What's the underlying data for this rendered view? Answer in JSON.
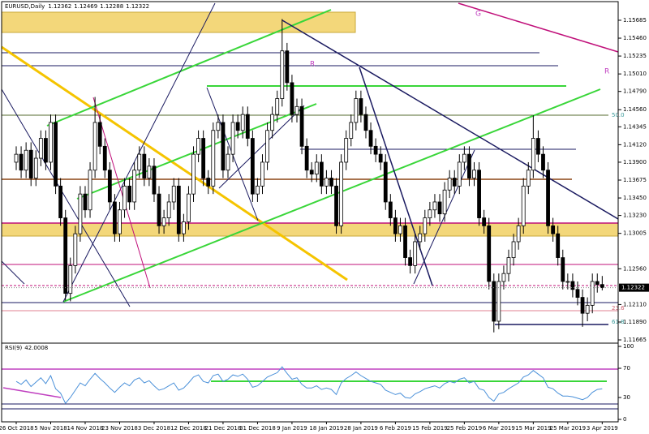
{
  "chart_data": {
    "type": "candlestick",
    "symbol": "EURUSD,Daily",
    "categories": [
      "26 Oct 2018",
      null,
      null,
      null,
      null,
      null,
      null,
      "5 Nov 2018",
      null,
      null,
      null,
      null,
      null,
      null,
      "14 Nov 2018",
      null,
      null,
      null,
      null,
      null,
      null,
      "23 Nov 2018",
      null,
      null,
      null,
      null,
      null,
      null,
      "3 Dec 2018",
      null,
      null,
      null,
      null,
      null,
      null,
      "12 Dec 2018",
      null,
      null,
      null,
      null,
      null,
      null,
      "21 Dec 2018",
      null,
      null,
      null,
      null,
      null,
      null,
      "31 Dec 2018",
      null,
      null,
      null,
      null,
      null,
      null,
      "9 Jan 2019",
      null,
      null,
      null,
      null,
      null,
      null,
      "18 Jan 2019",
      null,
      null,
      null,
      null,
      null,
      null,
      "28 Jan 2019",
      null,
      null,
      null,
      null,
      null,
      null,
      "6 Feb 2019",
      null,
      null,
      null,
      null,
      null,
      null,
      "15 Feb 2019",
      null,
      null,
      null,
      null,
      null,
      null,
      "25 Feb 2019",
      null,
      null,
      null,
      null,
      null,
      null,
      "6 Mar 2019",
      null,
      null,
      null,
      null,
      null,
      null,
      "15 Mar 2019",
      null,
      null,
      null,
      null,
      null,
      null,
      "25 Mar 2019",
      null,
      null,
      null,
      null,
      null,
      null,
      "3 Apr 2019"
    ],
    "open": [
      1.139,
      1.14,
      1.138,
      1.1405,
      1.137,
      1.1395,
      1.142,
      1.139,
      1.144,
      1.136,
      1.132,
      1.1225,
      1.126,
      1.13,
      1.135,
      1.133,
      1.138,
      1.144,
      1.141,
      1.138,
      1.134,
      1.13,
      1.133,
      1.136,
      1.134,
      1.138,
      1.14,
      1.137,
      1.1385,
      1.135,
      1.131,
      1.132,
      1.134,
      1.136,
      1.13,
      1.1315,
      1.135,
      1.14,
      1.142,
      1.137,
      1.136,
      1.143,
      1.144,
      1.138,
      1.14,
      1.144,
      1.143,
      1.145,
      1.142,
      1.135,
      1.136,
      1.139,
      1.143,
      1.145,
      1.147,
      1.153,
      1.149,
      1.145,
      1.146,
      1.141,
      1.138,
      1.1375,
      1.139,
      1.136,
      1.137,
      1.136,
      1.131,
      1.139,
      1.142,
      1.144,
      1.147,
      1.145,
      1.143,
      1.141,
      1.14,
      1.139,
      1.134,
      1.132,
      1.13,
      1.131,
      1.127,
      1.126,
      1.129,
      1.13,
      1.132,
      1.133,
      1.134,
      1.1325,
      1.1355,
      1.137,
      1.136,
      1.139,
      1.14,
      1.137,
      1.138,
      1.132,
      1.131,
      1.124,
      1.119,
      1.124,
      1.125,
      1.127,
      1.129,
      1.131,
      1.136,
      1.138,
      1.142,
      1.14,
      1.138,
      1.131,
      1.13,
      1.127,
      1.124,
      1.124,
      1.123,
      1.122,
      1.12,
      1.121,
      1.124,
      1.12362
    ],
    "high": [
      1.141,
      1.141,
      1.1415,
      1.1415,
      1.1405,
      1.143,
      1.143,
      1.145,
      1.145,
      1.137,
      1.133,
      1.127,
      1.131,
      1.136,
      1.136,
      1.139,
      1.1472,
      1.145,
      1.142,
      1.139,
      1.135,
      1.134,
      1.137,
      1.137,
      1.139,
      1.141,
      1.141,
      1.1395,
      1.1395,
      1.136,
      1.133,
      1.135,
      1.137,
      1.137,
      1.1325,
      1.136,
      1.141,
      1.143,
      1.143,
      1.138,
      1.144,
      1.145,
      1.145,
      1.141,
      1.145,
      1.145,
      1.146,
      1.146,
      1.143,
      1.137,
      1.14,
      1.144,
      1.146,
      1.148,
      1.157,
      1.154,
      1.15,
      1.147,
      1.147,
      1.142,
      1.139,
      1.14,
      1.14,
      1.138,
      1.138,
      1.137,
      1.14,
      1.143,
      1.145,
      1.148,
      1.148,
      1.146,
      1.144,
      1.142,
      1.141,
      1.14,
      1.135,
      1.133,
      1.132,
      1.132,
      1.128,
      1.13,
      1.131,
      1.133,
      1.134,
      1.135,
      1.135,
      1.1365,
      1.138,
      1.138,
      1.14,
      1.141,
      1.141,
      1.139,
      1.139,
      1.133,
      1.132,
      1.125,
      1.125,
      1.126,
      1.128,
      1.13,
      1.132,
      1.137,
      1.139,
      1.1449,
      1.143,
      1.141,
      1.139,
      1.132,
      1.131,
      1.128,
      1.125,
      1.125,
      1.124,
      1.123,
      1.122,
      1.125,
      1.125,
      1.12469
    ],
    "low": [
      1.138,
      1.137,
      1.137,
      1.136,
      1.136,
      1.1385,
      1.138,
      1.138,
      1.135,
      1.131,
      1.1216,
      1.1215,
      1.125,
      1.129,
      1.132,
      1.132,
      1.137,
      1.14,
      1.137,
      1.133,
      1.129,
      1.129,
      1.132,
      1.133,
      1.133,
      1.137,
      1.136,
      1.136,
      1.134,
      1.13,
      1.13,
      1.131,
      1.133,
      1.129,
      1.129,
      1.1305,
      1.134,
      1.139,
      1.136,
      1.135,
      1.135,
      1.142,
      1.137,
      1.137,
      1.139,
      1.142,
      1.142,
      1.141,
      1.134,
      1.134,
      1.135,
      1.138,
      1.142,
      1.144,
      1.146,
      1.148,
      1.144,
      1.144,
      1.14,
      1.137,
      1.1365,
      1.1365,
      1.135,
      1.135,
      1.135,
      1.13,
      1.13,
      1.138,
      1.141,
      1.143,
      1.144,
      1.142,
      1.14,
      1.139,
      1.138,
      1.133,
      1.131,
      1.129,
      1.129,
      1.126,
      1.125,
      1.125,
      1.128,
      1.129,
      1.131,
      1.132,
      1.1315,
      1.1315,
      1.1345,
      1.135,
      1.135,
      1.138,
      1.136,
      1.136,
      1.131,
      1.13,
      1.123,
      1.1176,
      1.118,
      1.123,
      1.124,
      1.126,
      1.128,
      1.13,
      1.135,
      1.137,
      1.139,
      1.137,
      1.13,
      1.129,
      1.126,
      1.123,
      1.123,
      1.122,
      1.121,
      1.1183,
      1.119,
      1.12,
      1.1226,
      1.12288
    ],
    "close": [
      1.14,
      1.138,
      1.1405,
      1.137,
      1.1395,
      1.142,
      1.139,
      1.144,
      1.136,
      1.132,
      1.1225,
      1.126,
      1.13,
      1.135,
      1.133,
      1.138,
      1.144,
      1.141,
      1.138,
      1.134,
      1.13,
      1.133,
      1.136,
      1.134,
      1.138,
      1.14,
      1.137,
      1.1385,
      1.135,
      1.131,
      1.132,
      1.134,
      1.136,
      1.13,
      1.1315,
      1.135,
      1.14,
      1.142,
      1.137,
      1.136,
      1.143,
      1.144,
      1.138,
      1.14,
      1.144,
      1.143,
      1.145,
      1.142,
      1.135,
      1.136,
      1.139,
      1.143,
      1.145,
      1.147,
      1.153,
      1.149,
      1.145,
      1.146,
      1.141,
      1.138,
      1.1375,
      1.139,
      1.136,
      1.137,
      1.136,
      1.131,
      1.139,
      1.142,
      1.144,
      1.147,
      1.145,
      1.143,
      1.141,
      1.14,
      1.139,
      1.134,
      1.132,
      1.13,
      1.131,
      1.127,
      1.126,
      1.129,
      1.13,
      1.132,
      1.133,
      1.134,
      1.1325,
      1.1355,
      1.137,
      1.136,
      1.139,
      1.14,
      1.137,
      1.138,
      1.132,
      1.131,
      1.124,
      1.119,
      1.124,
      1.125,
      1.127,
      1.129,
      1.131,
      1.136,
      1.138,
      1.142,
      1.14,
      1.138,
      1.131,
      1.13,
      1.127,
      1.124,
      1.124,
      1.123,
      1.122,
      1.12,
      1.121,
      1.124,
      1.12362,
      1.12322
    ],
    "ylim": [
      1.11655,
      1.15899
    ],
    "yticks": [
      1.15685,
      {
        "value": 1.1546,
        "label": "1.15460"
      },
      1.15235,
      {
        "value": 1.1501,
        "label": "1.15010"
      },
      {
        "value": 1.1479,
        "label": "1.14790"
      },
      {
        "value": 1.1456,
        "label": "1.14560"
      },
      1.14345,
      {
        "value": 1.1412,
        "label": "1.14120"
      },
      {
        "value": 1.139,
        "label": "1.13900"
      },
      1.13675,
      {
        "value": 1.1345,
        "label": "1.13450"
      },
      {
        "value": 1.1323,
        "label": "1.13230"
      },
      1.13005,
      {
        "value": 1.1256,
        "label": "1.12560"
      },
      {
        "value": 1.1211,
        "label": "1.12110"
      },
      {
        "value": 1.1189,
        "label": "1.11890"
      },
      1.11665
    ],
    "up_color": "#ffffff",
    "down_color": "#000000",
    "annotations": [
      "50.0",
      "23.6",
      "61.8",
      "G",
      "R",
      "R"
    ],
    "indicator": {
      "name": "RSI(9)",
      "color": "#4a90d9",
      "ylim": [
        0,
        100
      ],
      "yticks": [
        100,
        70,
        30,
        0
      ],
      "values": [
        52,
        48,
        54,
        45,
        51,
        57,
        49,
        60,
        42,
        36,
        22,
        30,
        40,
        50,
        46,
        55,
        63,
        56,
        50,
        43,
        37,
        44,
        50,
        46,
        54,
        57,
        50,
        53,
        46,
        40,
        42,
        46,
        50,
        40,
        43,
        50,
        58,
        61,
        52,
        50,
        60,
        62,
        52,
        55,
        61,
        59,
        62,
        55,
        44,
        46,
        52,
        58,
        61,
        64,
        72,
        63,
        55,
        57,
        48,
        43,
        43,
        46,
        41,
        43,
        41,
        34,
        50,
        56,
        60,
        65,
        60,
        56,
        52,
        50,
        48,
        40,
        37,
        34,
        36,
        30,
        29,
        35,
        38,
        42,
        44,
        46,
        43,
        49,
        52,
        50,
        55,
        57,
        50,
        52,
        42,
        40,
        30,
        25,
        35,
        37,
        42,
        46,
        50,
        58,
        61,
        67,
        62,
        57,
        44,
        42,
        36,
        32,
        32,
        31,
        29,
        27,
        30,
        37,
        41,
        42.0008
      ]
    }
  }
}
